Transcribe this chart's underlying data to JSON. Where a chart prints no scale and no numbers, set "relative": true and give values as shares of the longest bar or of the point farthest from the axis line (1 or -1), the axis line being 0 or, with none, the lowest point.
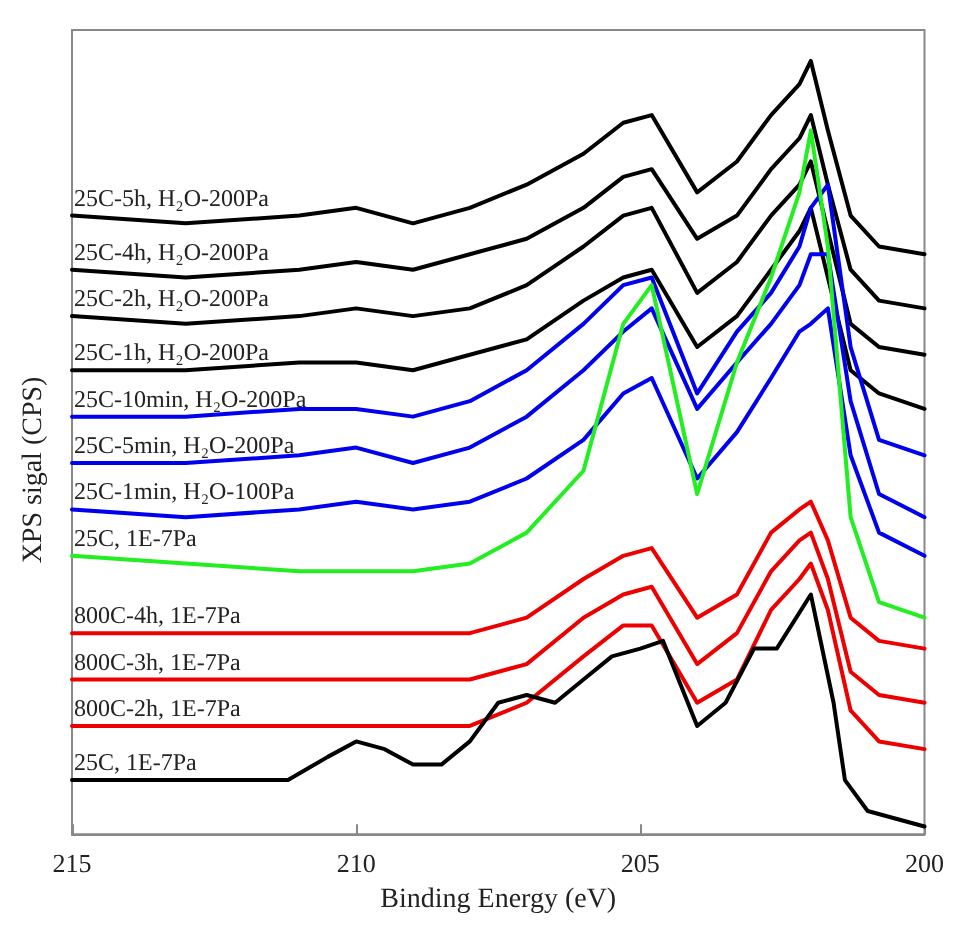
{
  "chart_data": {
    "type": "line",
    "xlabel": "Binding Energy (eV)",
    "ylabel": "XPS sigal (CPS)",
    "relative": true,
    "xlim": [
      215,
      200
    ],
    "xticks": [
      215,
      210,
      205,
      200
    ],
    "grid": false,
    "legend": false,
    "marker": "none",
    "line_style": "solid",
    "x": [
      215,
      213,
      211,
      210,
      209,
      208,
      207,
      206,
      205.3,
      204.8,
      204.0,
      203.3,
      202.7,
      202.2,
      202.0,
      201.7,
      201.3,
      200.8,
      200
    ],
    "series": [
      {
        "name": "25C-5h, H₂O-200Pa",
        "color": "#000000",
        "values": [
          0.8,
          0.79,
          0.8,
          0.81,
          0.79,
          0.81,
          0.84,
          0.88,
          0.92,
          0.93,
          0.83,
          0.87,
          0.93,
          0.97,
          1,
          0.91,
          0.8,
          0.76,
          0.75
        ]
      },
      {
        "name": "25C-4h, H₂O-200Pa",
        "color": "#000000",
        "values": [
          0.73,
          0.72,
          0.73,
          0.74,
          0.73,
          0.75,
          0.77,
          0.81,
          0.85,
          0.86,
          0.77,
          0.8,
          0.86,
          0.9,
          0.93,
          0.84,
          0.73,
          0.69,
          0.68
        ]
      },
      {
        "name": "25C-2h, H₂O-200Pa",
        "color": "#000000",
        "values": [
          0.67,
          0.66,
          0.67,
          0.68,
          0.67,
          0.68,
          0.71,
          0.76,
          0.8,
          0.81,
          0.7,
          0.74,
          0.8,
          0.84,
          0.87,
          0.78,
          0.66,
          0.63,
          0.62
        ]
      },
      {
        "name": "25C-1h, H₂O-200Pa",
        "color": "#000000",
        "values": [
          0.6,
          0.6,
          0.61,
          0.61,
          0.6,
          0.62,
          0.64,
          0.69,
          0.72,
          0.73,
          0.63,
          0.67,
          0.73,
          0.78,
          0.81,
          0.72,
          0.6,
          0.57,
          0.55
        ]
      },
      {
        "name": "25C-10min, H₂O-200Pa",
        "color": "#0000ee",
        "values": [
          0.54,
          0.54,
          0.55,
          0.55,
          0.54,
          0.56,
          0.6,
          0.66,
          0.71,
          0.72,
          0.57,
          0.65,
          0.7,
          0.76,
          0.81,
          0.84,
          0.63,
          0.51,
          0.49
        ]
      },
      {
        "name": "25C-5min, H₂O-200Pa",
        "color": "#0000ee",
        "values": [
          0.48,
          0.48,
          0.49,
          0.5,
          0.48,
          0.5,
          0.54,
          0.6,
          0.65,
          0.68,
          0.55,
          0.61,
          0.66,
          0.71,
          0.75,
          0.75,
          0.56,
          0.44,
          0.41
        ]
      },
      {
        "name": "25C-1min, H₂O-100Pa",
        "color": "#0000ee",
        "values": [
          0.42,
          0.41,
          0.42,
          0.43,
          0.42,
          0.43,
          0.46,
          0.51,
          0.57,
          0.59,
          0.46,
          0.52,
          0.59,
          0.65,
          0.66,
          0.68,
          0.49,
          0.39,
          0.36
        ]
      },
      {
        "name": "25C, 1E-7Pa",
        "color": "#22ee22",
        "values": [
          0.36,
          0.35,
          0.34,
          0.34,
          0.34,
          0.35,
          0.39,
          0.47,
          0.66,
          0.71,
          0.44,
          0.61,
          0.72,
          0.83,
          0.91,
          0.76,
          0.41,
          0.3,
          0.28
        ]
      },
      {
        "name": "800C-4h, 1E-7Pa",
        "color": "#ee0000",
        "values": [
          0.26,
          0.26,
          0.26,
          0.26,
          0.26,
          0.26,
          0.28,
          0.33,
          0.36,
          0.37,
          0.28,
          0.31,
          0.39,
          0.42,
          0.43,
          0.38,
          0.28,
          0.25,
          0.24
        ]
      },
      {
        "name": "800C-3h, 1E-7Pa",
        "color": "#ee0000",
        "values": [
          0.2,
          0.2,
          0.2,
          0.2,
          0.2,
          0.2,
          0.22,
          0.28,
          0.31,
          0.32,
          0.22,
          0.26,
          0.34,
          0.38,
          0.39,
          0.33,
          0.21,
          0.18,
          0.17
        ]
      },
      {
        "name": "800C-2h, 1E-7Pa",
        "color": "#ee0000",
        "values": [
          0.14,
          0.14,
          0.14,
          0.14,
          0.14,
          0.14,
          0.17,
          0.23,
          0.27,
          0.27,
          0.17,
          0.2,
          0.29,
          0.33,
          0.35,
          0.29,
          0.16,
          0.12,
          0.11
        ]
      },
      {
        "name": "25C, 1E-7Pa",
        "color": "#000000",
        "x": [
          215,
          213,
          211.2,
          210.5,
          210.0,
          209.5,
          209.0,
          208.5,
          208.0,
          207.5,
          207.0,
          206.5,
          206.0,
          205.5,
          205.0,
          204.6,
          204.0,
          203.5,
          203.0,
          202.6,
          202.0,
          201.6,
          201.4,
          201.0,
          200
        ],
        "values": [
          0.07,
          0.07,
          0.07,
          0.1,
          0.12,
          0.11,
          0.09,
          0.09,
          0.12,
          0.17,
          0.18,
          0.17,
          0.2,
          0.23,
          0.24,
          0.25,
          0.14,
          0.17,
          0.24,
          0.24,
          0.31,
          0.17,
          0.07,
          0.03,
          0.01
        ]
      }
    ]
  }
}
